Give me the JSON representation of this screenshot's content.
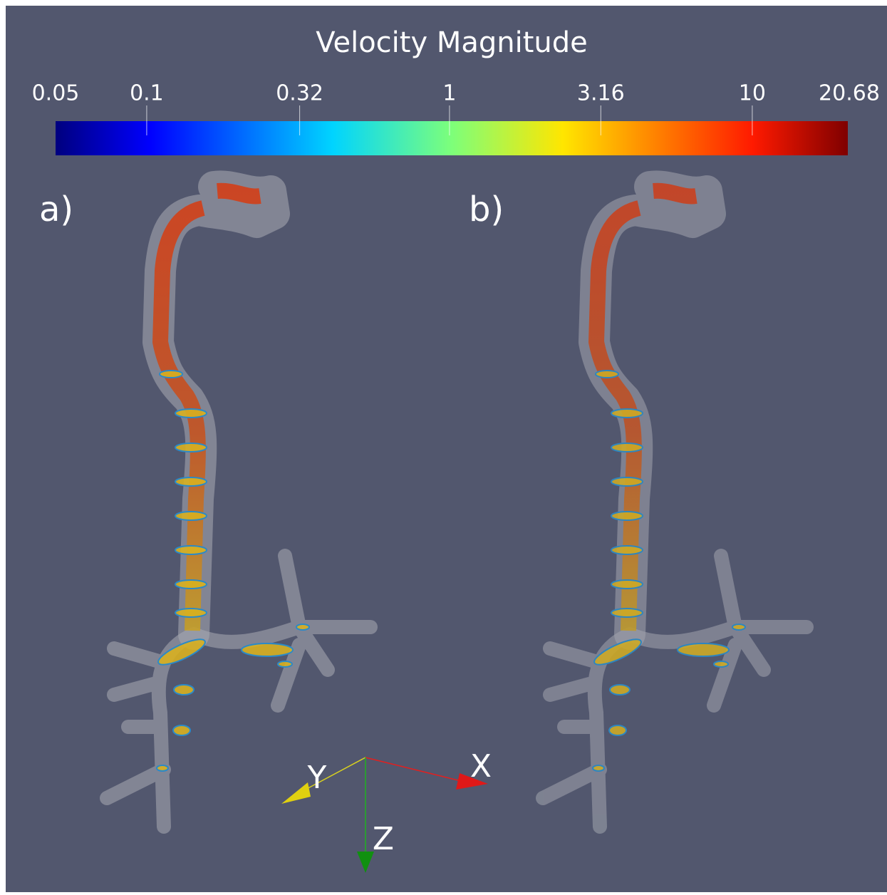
{
  "title": "Velocity Magnitude",
  "colorbar": {
    "range": [
      0.05,
      20.68
    ],
    "ticks": [
      0.1,
      0.32,
      1,
      3.16,
      10
    ],
    "log_scale": true
  },
  "panels": [
    "a)",
    "b)"
  ],
  "axes": {
    "x": "X",
    "y": "Y",
    "z": "Z"
  }
}
